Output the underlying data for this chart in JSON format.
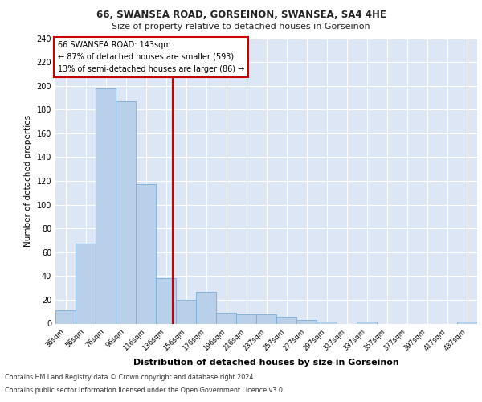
{
  "title1": "66, SWANSEA ROAD, GORSEINON, SWANSEA, SA4 4HE",
  "title2": "Size of property relative to detached houses in Gorseinon",
  "xlabel": "Distribution of detached houses by size in Gorseinon",
  "ylabel": "Number of detached properties",
  "categories": [
    "36sqm",
    "56sqm",
    "76sqm",
    "96sqm",
    "116sqm",
    "136sqm",
    "156sqm",
    "176sqm",
    "196sqm",
    "216sqm",
    "237sqm",
    "257sqm",
    "277sqm",
    "297sqm",
    "317sqm",
    "337sqm",
    "357sqm",
    "377sqm",
    "397sqm",
    "417sqm",
    "437sqm"
  ],
  "values": [
    11,
    67,
    198,
    187,
    117,
    38,
    20,
    27,
    9,
    8,
    8,
    6,
    3,
    2,
    0,
    2,
    0,
    0,
    0,
    0,
    2
  ],
  "bar_color": "#b8d0ea",
  "bar_edge_color": "#7aadd4",
  "bg_color": "#dce6f5",
  "grid_color": "#ffffff",
  "annotation_title": "66 SWANSEA ROAD: 143sqm",
  "annotation_line1": "← 87% of detached houses are smaller (593)",
  "annotation_line2": "13% of semi-detached houses are larger (86) →",
  "vline_x": 5.35,
  "annotation_box_color": "#ffffff",
  "annotation_box_edge": "#cc0000",
  "vline_color": "#cc0000",
  "footer1": "Contains HM Land Registry data © Crown copyright and database right 2024.",
  "footer2": "Contains public sector information licensed under the Open Government Licence v3.0.",
  "ylim": [
    0,
    240
  ],
  "yticks": [
    0,
    20,
    40,
    60,
    80,
    100,
    120,
    140,
    160,
    180,
    200,
    220,
    240
  ]
}
